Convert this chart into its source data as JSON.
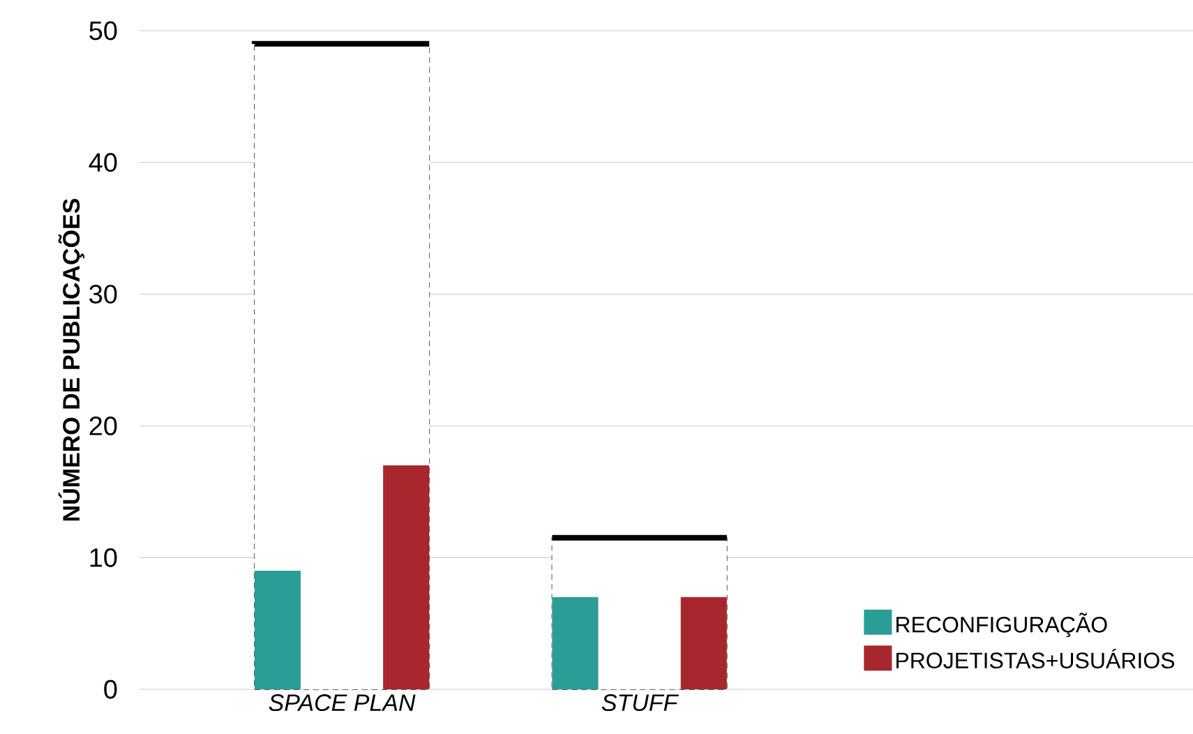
{
  "chart_data": {
    "type": "bar",
    "categories": [
      "SPACE PLAN",
      "STUFF"
    ],
    "ylabel": "NÚMERO DE PUBLICAÇÕES",
    "ylim": [
      0,
      50
    ],
    "yticks": [
      0,
      10,
      20,
      30,
      40,
      50
    ],
    "grid": "y",
    "legend": "bottom right",
    "series": [
      {
        "color": "#ffffff",
        "values": [
          49,
          11.5
        ],
        "line_style": "dashed"
      },
      {
        "name": "RECONFIGURAÇÃO",
        "color": "#2a9d96",
        "values": [
          9,
          7
        ]
      },
      {
        "name": "PROJETISTAS+USUÁRIOS",
        "color": "#a8262e",
        "values": [
          17,
          7
        ]
      }
    ]
  }
}
